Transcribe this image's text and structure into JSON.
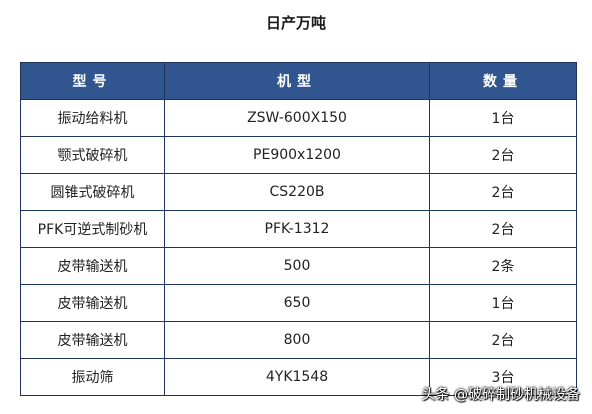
{
  "title": "日产万吨",
  "table": {
    "headers": [
      "型号",
      "机型",
      "数量"
    ],
    "rows": [
      [
        "振动给料机",
        "ZSW-600X150",
        "1台"
      ],
      [
        "颚式破碎机",
        "PE900x1200",
        "2台"
      ],
      [
        "圆锥式破碎机",
        "CS220B",
        "2台"
      ],
      [
        "PFK可逆式制砂机",
        "PFK-1312",
        "2台"
      ],
      [
        "皮带输送机",
        "500",
        "2条"
      ],
      [
        "皮带输送机",
        "650",
        "1台"
      ],
      [
        "皮带输送机",
        "800",
        "2台"
      ],
      [
        "振动筛",
        "4YK1548",
        "3台"
      ]
    ]
  },
  "watermark": "头条 @破碎制砂机械设备",
  "colors": {
    "header_bg": "#31558e",
    "border": "#1e3559"
  }
}
